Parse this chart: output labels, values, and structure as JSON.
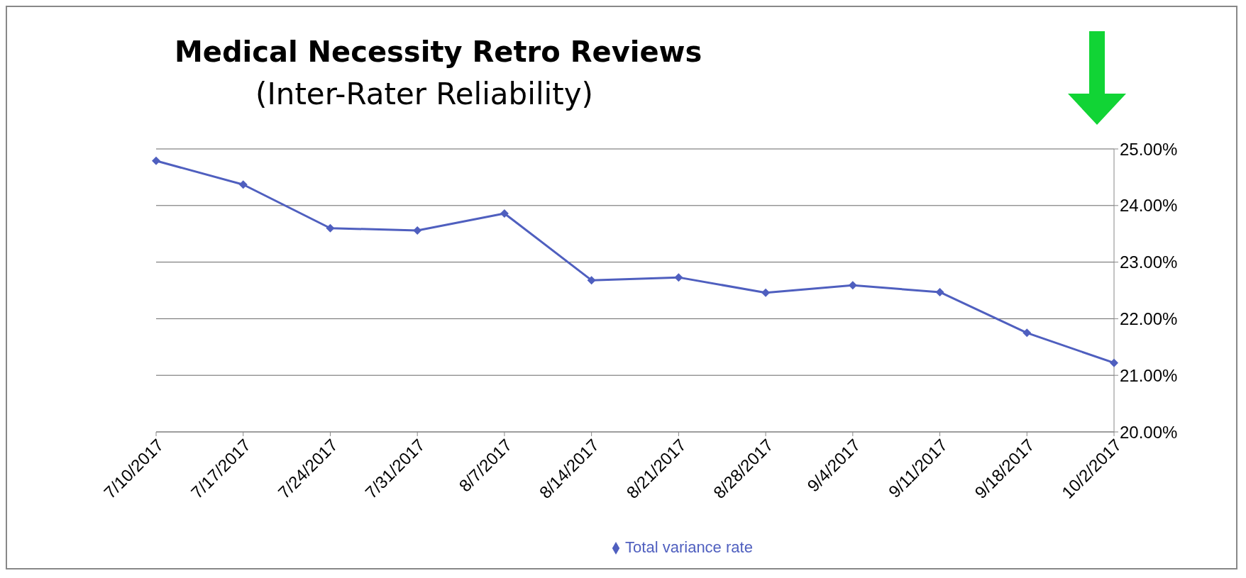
{
  "chart_data": {
    "type": "line",
    "title": "Medical Necessity Retro Reviews",
    "subtitle": "(Inter-Rater Reliability)",
    "categories": [
      "7/10/2017",
      "7/17/2017",
      "7/24/2017",
      "7/31/2017",
      "8/7/2017",
      "8/14/2017",
      "8/21/2017",
      "8/28/2017",
      "9/4/2017",
      "9/11/2017",
      "9/18/2017",
      "10/2/2017"
    ],
    "series": [
      {
        "name": "Total variance rate",
        "color": "#4f5fbf",
        "values": [
          24.79,
          24.37,
          23.6,
          23.56,
          23.86,
          22.68,
          22.73,
          22.46,
          22.59,
          22.47,
          21.75,
          21.22
        ]
      }
    ],
    "ylim": [
      20,
      25
    ],
    "yticks": [
      {
        "value": 20,
        "label": "20.00%"
      },
      {
        "value": 21,
        "label": "21.00%"
      },
      {
        "value": 22,
        "label": "22.00%"
      },
      {
        "value": 23,
        "label": "23.00%"
      },
      {
        "value": 24,
        "label": "24.00%"
      },
      {
        "value": 25,
        "label": "25.00%"
      }
    ],
    "grid": "y",
    "legend": "bottom",
    "marker": "diamond",
    "line_style": "solid"
  }
}
